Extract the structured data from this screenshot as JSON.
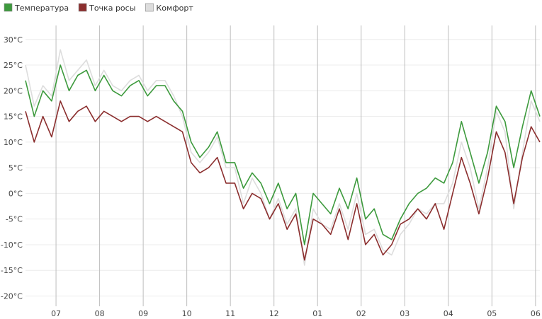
{
  "chart_data": {
    "type": "line",
    "title": "",
    "xlabel": "",
    "ylabel": "",
    "ylim": [
      -22,
      33
    ],
    "grid": "horizontal and vertical",
    "legend_position": "top-left",
    "x_ticks": [
      "07",
      "08",
      "09",
      "10",
      "11",
      "12",
      "01",
      "02",
      "03",
      "04",
      "05",
      "06"
    ],
    "x_tick_positions": [
      1,
      2,
      3,
      4,
      5,
      6,
      7,
      8,
      9,
      10,
      11,
      12
    ],
    "xlim": [
      0.3,
      12.1
    ],
    "y_ticks": [
      {
        "value": 30,
        "label": "30°C"
      },
      {
        "value": 25,
        "label": "25°C"
      },
      {
        "value": 20,
        "label": "20°C"
      },
      {
        "value": 15,
        "label": "15°C"
      },
      {
        "value": 10,
        "label": "10°C"
      },
      {
        "value": 5,
        "label": "5°C"
      },
      {
        "value": 0,
        "label": "0°C"
      },
      {
        "value": -5,
        "label": "-5°C"
      },
      {
        "value": -10,
        "label": "-10°C"
      },
      {
        "value": -15,
        "label": "-15°C"
      },
      {
        "value": -20,
        "label": "-20°C"
      }
    ],
    "x": [
      0.3,
      0.5,
      0.7,
      0.9,
      1.1,
      1.3,
      1.5,
      1.7,
      1.9,
      2.1,
      2.3,
      2.5,
      2.7,
      2.9,
      3.1,
      3.3,
      3.5,
      3.7,
      3.9,
      4.1,
      4.3,
      4.5,
      4.7,
      4.9,
      5.1,
      5.3,
      5.5,
      5.7,
      5.9,
      6.1,
      6.3,
      6.5,
      6.7,
      6.9,
      7.1,
      7.3,
      7.5,
      7.7,
      7.9,
      8.1,
      8.3,
      8.5,
      8.7,
      8.9,
      9.1,
      9.3,
      9.5,
      9.7,
      9.9,
      10.1,
      10.3,
      10.5,
      10.7,
      10.9,
      11.1,
      11.3,
      11.5,
      11.7,
      11.9,
      12.1
    ],
    "series": [
      {
        "name": "Комфорт",
        "color": "#dddddd",
        "values": [
          25,
          17,
          21,
          19,
          28,
          22,
          24,
          26,
          21,
          24,
          21,
          20,
          22,
          23,
          20,
          22,
          22,
          19,
          15,
          8,
          6,
          8,
          11,
          5,
          5,
          -2,
          3,
          0,
          -5,
          -1,
          -6,
          -3,
          -14,
          -3,
          -6,
          -7,
          -2,
          -7,
          0,
          -8,
          -7,
          -11,
          -12,
          -8,
          -6,
          -3,
          -4,
          -2,
          -2,
          2,
          10,
          5,
          -3,
          5,
          16,
          12,
          -3,
          8,
          18,
          14
        ]
      },
      {
        "name": "Температура",
        "color": "#3d9a3d",
        "values": [
          22,
          15,
          20,
          18,
          25,
          20,
          23,
          24,
          20,
          23,
          20,
          19,
          21,
          22,
          19,
          21,
          21,
          18,
          16,
          10,
          7,
          9,
          12,
          6,
          6,
          1,
          4,
          2,
          -2,
          2,
          -3,
          0,
          -10,
          0,
          -2,
          -4,
          1,
          -3,
          3,
          -5,
          -3,
          -8,
          -9,
          -5,
          -2,
          0,
          1,
          3,
          2,
          6,
          14,
          8,
          2,
          8,
          17,
          14,
          5,
          13,
          20,
          15
        ]
      },
      {
        "name": "Точка росы",
        "color": "#8b2e2e",
        "values": [
          16,
          10,
          15,
          11,
          18,
          14,
          16,
          17,
          14,
          16,
          15,
          14,
          15,
          15,
          14,
          15,
          14,
          13,
          12,
          6,
          4,
          5,
          7,
          2,
          2,
          -3,
          0,
          -1,
          -5,
          -2,
          -7,
          -4,
          -13,
          -5,
          -6,
          -8,
          -3,
          -9,
          -2,
          -10,
          -8,
          -12,
          -10,
          -6,
          -5,
          -3,
          -5,
          -2,
          -7,
          0,
          7,
          2,
          -4,
          3,
          12,
          8,
          -2,
          7,
          13,
          10
        ]
      }
    ]
  }
}
